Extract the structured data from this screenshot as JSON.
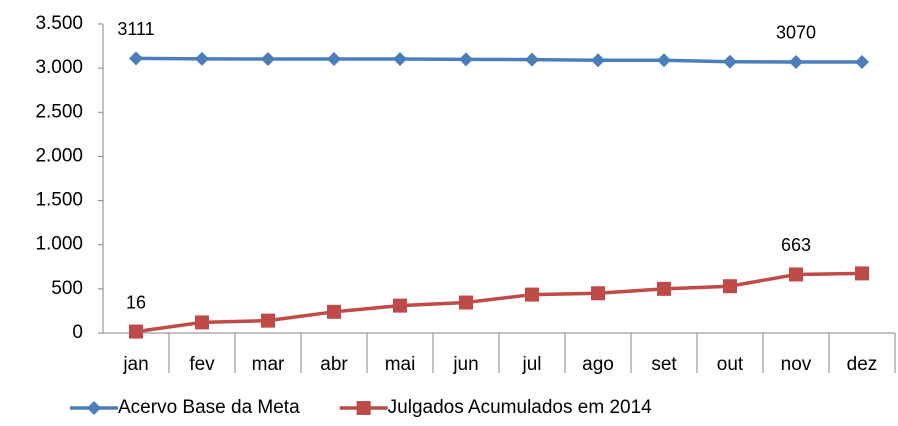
{
  "chart_data": {
    "type": "line",
    "categories": [
      "jan",
      "fev",
      "mar",
      "abr",
      "mai",
      "jun",
      "jul",
      "ago",
      "set",
      "out",
      "nov",
      "dez"
    ],
    "series": [
      {
        "name": "Acervo Base da Meta",
        "color": "#4a7ebb",
        "marker": "diamond",
        "labeled_points": [
          0,
          10
        ],
        "values": [
          3111,
          3105,
          3104,
          3103,
          3103,
          3100,
          3097,
          3090,
          3089,
          3072,
          3070,
          3070
        ]
      },
      {
        "name": "Julgados Acumulados em 2014",
        "color": "#be4b48",
        "marker": "square",
        "labeled_points": [
          0,
          10
        ],
        "values": [
          16,
          120,
          140,
          240,
          310,
          345,
          435,
          450,
          500,
          530,
          663,
          675
        ]
      }
    ],
    "ylim": [
      0,
      3500
    ],
    "yticks": [
      0,
      500,
      {
        "value": 1000,
        "label": "1.000"
      },
      {
        "value": 1500,
        "label": "1.500"
      },
      {
        "value": 2000,
        "label": "2.000"
      },
      {
        "value": 2500,
        "label": "2.500"
      },
      {
        "value": 3000,
        "label": "3.000"
      },
      {
        "value": 3500,
        "label": "3.500"
      }
    ],
    "grid": false,
    "legend": "bottom"
  }
}
